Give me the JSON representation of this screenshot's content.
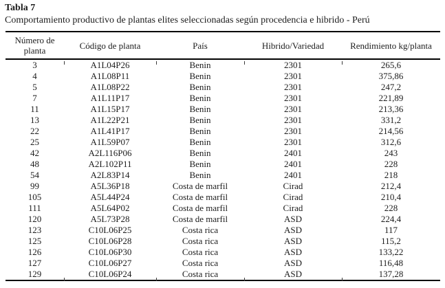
{
  "page": {
    "title": "Tabla 7",
    "subtitle": "Comportamiento productivo de plantas elites seleccionadas según procedencia e hibrido - Perú"
  },
  "colors": {
    "border": "#000000",
    "text": "#1c1c1c",
    "bg": "#ffffff"
  },
  "table": {
    "headers": [
      "Número de planta",
      "Código de planta",
      "País",
      "Hibrido/Variedad",
      "Rendimiento kg/planta"
    ],
    "rows": [
      [
        "3",
        "A1L04P26",
        "Benin",
        "2301",
        "265,6"
      ],
      [
        "4",
        "A1L08P11",
        "Benin",
        "2301",
        "375,86"
      ],
      [
        "5",
        "A1L08P22",
        "Benin",
        "2301",
        "247,2"
      ],
      [
        "7",
        "A1L11P17",
        "Benin",
        "2301",
        "221,89"
      ],
      [
        "11",
        "A1L15P17",
        "Benin",
        "2301",
        "213,36"
      ],
      [
        "13",
        "A1L22P21",
        "Benin",
        "2301",
        "331,2"
      ],
      [
        "22",
        "A1L41P17",
        "Benin",
        "2301",
        "214,56"
      ],
      [
        "25",
        "A1L59P07",
        "Benin",
        "2301",
        "312,6"
      ],
      [
        "42",
        "A2L116P06",
        "Benin",
        "2401",
        "243"
      ],
      [
        "48",
        "A2L102P11",
        "Benin",
        "2401",
        "228"
      ],
      [
        "54",
        "A2L83P14",
        "Benin",
        "2401",
        "218"
      ],
      [
        "99",
        "A5L36P18",
        "Costa de marfil",
        "Cirad",
        "212,4"
      ],
      [
        "105",
        "A5L44P24",
        "Costa de marfil",
        "Cirad",
        "210,4"
      ],
      [
        "111",
        "A5L64P02",
        "Costa de marfil",
        "Cirad",
        "228"
      ],
      [
        "120",
        "A5L73P28",
        "Costa de marfil",
        "ASD",
        "224,4"
      ],
      [
        "123",
        "C10L06P25",
        "Costa rica",
        "ASD",
        "117"
      ],
      [
        "125",
        "C10L06P28",
        "Costa rica",
        "ASD",
        "115,2"
      ],
      [
        "126",
        "C10L06P30",
        "Costa rica",
        "ASD",
        "133,22"
      ],
      [
        "127",
        "C10L06P27",
        "Costa rica",
        "ASD",
        "116,48"
      ],
      [
        "129",
        "C10L06P24",
        "Costa rica",
        "ASD",
        "137,28"
      ]
    ]
  }
}
